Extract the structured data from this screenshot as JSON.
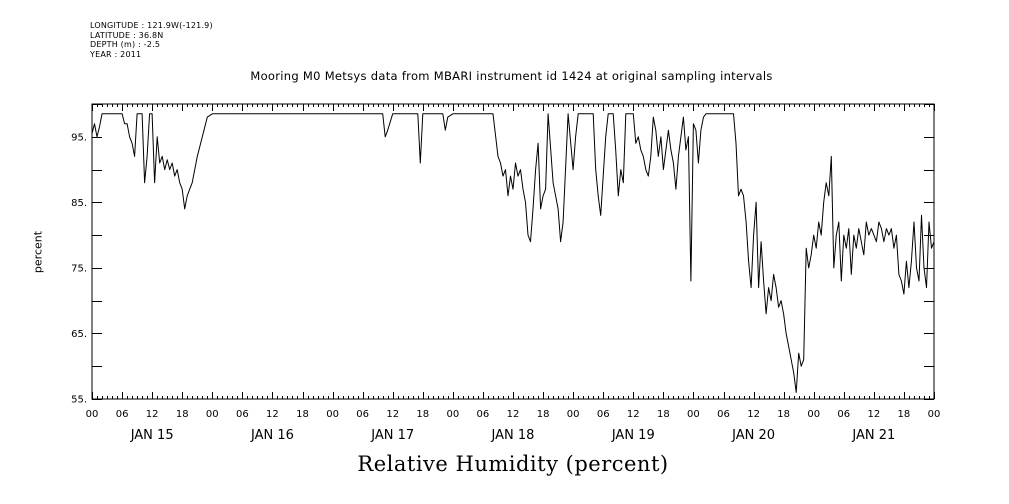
{
  "header": {
    "longitude": "LONGITUDE : 121.9W(-121.9)",
    "latitude": "LATITUDE : 36.8N",
    "depth": "DEPTH (m) : -2.5",
    "year": "YEAR : 2011"
  },
  "chart_data": {
    "type": "line",
    "title": "Mooring M0 Metsys data from MBARI instrument id 1424 at original sampling intervals",
    "xlabel": "Relative Humidity (percent)",
    "ylabel": "percent",
    "ylim": [
      55,
      100
    ],
    "xlim": [
      "2011-01-15 00:00",
      "2011-01-22 00:00"
    ],
    "y_ticks": [
      "95.",
      "85.",
      "75.",
      "65.",
      "55."
    ],
    "y_tick_values": [
      95,
      85,
      75,
      65,
      55
    ],
    "hour_ticks": [
      "00",
      "06",
      "12",
      "18",
      "00",
      "06",
      "12",
      "18",
      "00",
      "06",
      "12",
      "18",
      "00",
      "06",
      "12",
      "18",
      "00",
      "06",
      "12",
      "18",
      "00",
      "06",
      "12",
      "18",
      "00",
      "06",
      "12",
      "18",
      "00"
    ],
    "day_labels": [
      "JAN 15",
      "JAN 16",
      "JAN 17",
      "JAN 18",
      "JAN 19",
      "JAN 20",
      "JAN 21"
    ],
    "grid": false,
    "series": [
      {
        "x_unit": "hours since 2011-01-15 00:00",
        "points": [
          [
            0,
            95.5
          ],
          [
            0.5,
            97
          ],
          [
            1,
            95
          ],
          [
            1.5,
            96.5
          ],
          [
            2,
            98.5
          ],
          [
            6,
            98.5
          ],
          [
            6.5,
            97
          ],
          [
            7,
            97
          ],
          [
            7.5,
            95
          ],
          [
            8,
            94
          ],
          [
            8.5,
            92
          ],
          [
            9,
            98.5
          ],
          [
            10,
            98.5
          ],
          [
            10.5,
            88
          ],
          [
            11,
            92
          ],
          [
            11.5,
            98.5
          ],
          [
            12,
            98.5
          ],
          [
            12.5,
            88
          ],
          [
            13,
            95
          ],
          [
            13.5,
            91
          ],
          [
            14,
            92
          ],
          [
            14.5,
            90
          ],
          [
            15,
            91.5
          ],
          [
            15.5,
            90
          ],
          [
            16,
            91
          ],
          [
            16.5,
            89
          ],
          [
            17,
            90
          ],
          [
            17.5,
            88
          ],
          [
            18,
            87
          ],
          [
            18.5,
            84
          ],
          [
            19,
            86
          ],
          [
            19.5,
            87
          ],
          [
            20,
            88
          ],
          [
            21,
            92
          ],
          [
            22,
            95
          ],
          [
            23,
            98
          ],
          [
            24,
            98.5
          ],
          [
            34,
            98.5
          ],
          [
            40,
            98.5
          ],
          [
            48,
            98.5
          ],
          [
            58,
            98.5
          ],
          [
            58.5,
            95
          ],
          [
            59,
            96
          ],
          [
            60,
            98.5
          ],
          [
            65,
            98.5
          ],
          [
            65.5,
            91
          ],
          [
            66,
            98.5
          ],
          [
            70,
            98.5
          ],
          [
            70.5,
            96
          ],
          [
            71,
            98
          ],
          [
            72,
            98.5
          ],
          [
            80,
            98.5
          ],
          [
            81,
            92
          ],
          [
            81.5,
            91
          ],
          [
            82,
            89
          ],
          [
            82.5,
            90
          ],
          [
            83,
            86
          ],
          [
            83.5,
            89
          ],
          [
            84,
            87
          ],
          [
            84.5,
            91
          ],
          [
            85,
            89
          ],
          [
            85.5,
            90
          ],
          [
            86,
            87
          ],
          [
            86.5,
            85
          ],
          [
            87,
            80
          ],
          [
            87.5,
            79
          ],
          [
            88,
            84
          ],
          [
            88.5,
            90
          ],
          [
            89,
            94
          ],
          [
            89.5,
            84
          ],
          [
            90,
            86
          ],
          [
            90.5,
            87
          ],
          [
            91,
            98.5
          ],
          [
            92,
            88
          ],
          [
            92.5,
            86
          ],
          [
            93,
            84
          ],
          [
            93.5,
            79
          ],
          [
            94,
            82
          ],
          [
            95,
            98.5
          ],
          [
            96,
            90
          ],
          [
            96.5,
            95
          ],
          [
            97,
            98.5
          ],
          [
            98,
            98.5
          ],
          [
            100,
            98.5
          ],
          [
            100.5,
            90
          ],
          [
            101,
            86
          ],
          [
            101.5,
            83
          ],
          [
            102,
            89
          ],
          [
            102.5,
            95
          ],
          [
            103,
            98.5
          ],
          [
            104,
            98.5
          ],
          [
            104.5,
            93
          ],
          [
            105,
            86
          ],
          [
            105.5,
            90
          ],
          [
            106,
            88
          ],
          [
            106.5,
            98.5
          ],
          [
            108,
            98.5
          ],
          [
            108.5,
            94
          ],
          [
            109,
            95
          ],
          [
            109.5,
            93
          ],
          [
            110,
            92
          ],
          [
            110.5,
            90
          ],
          [
            111,
            89
          ],
          [
            111.5,
            92
          ],
          [
            112,
            98
          ],
          [
            112.5,
            96
          ],
          [
            113,
            92
          ],
          [
            113.5,
            95
          ],
          [
            114,
            90
          ],
          [
            114.5,
            93
          ],
          [
            115,
            96
          ],
          [
            115.5,
            93
          ],
          [
            116,
            91
          ],
          [
            116.5,
            87
          ],
          [
            117,
            92
          ],
          [
            117.5,
            95
          ],
          [
            118,
            98
          ],
          [
            118.5,
            93
          ],
          [
            119,
            95
          ],
          [
            119.5,
            73
          ],
          [
            120,
            97
          ],
          [
            120.5,
            96
          ],
          [
            121,
            91
          ],
          [
            121.5,
            96
          ],
          [
            122,
            98
          ],
          [
            122.5,
            98.5
          ],
          [
            128,
            98.5
          ],
          [
            128.5,
            94
          ],
          [
            129,
            86
          ],
          [
            129.5,
            87
          ],
          [
            130,
            86
          ],
          [
            130.5,
            82
          ],
          [
            131,
            76
          ],
          [
            131.5,
            72
          ],
          [
            132,
            80
          ],
          [
            132.5,
            85
          ],
          [
            133,
            72
          ],
          [
            133.5,
            79
          ],
          [
            134,
            73
          ],
          [
            134.5,
            68
          ],
          [
            135,
            72
          ],
          [
            135.5,
            70
          ],
          [
            136,
            74
          ],
          [
            136.5,
            72
          ],
          [
            137,
            69
          ],
          [
            137.5,
            70
          ],
          [
            138,
            68
          ],
          [
            138.5,
            65
          ],
          [
            139,
            63
          ],
          [
            139.5,
            61
          ],
          [
            140,
            59
          ],
          [
            140.5,
            56
          ],
          [
            141,
            62
          ],
          [
            141.5,
            60
          ],
          [
            142,
            61
          ],
          [
            142.5,
            78
          ],
          [
            143,
            75
          ],
          [
            143.5,
            77
          ],
          [
            144,
            80
          ],
          [
            144.5,
            78
          ],
          [
            145,
            82
          ],
          [
            145.5,
            80
          ],
          [
            146,
            85
          ],
          [
            146.5,
            88
          ],
          [
            147,
            86
          ],
          [
            147.5,
            92
          ],
          [
            148,
            75
          ],
          [
            148.5,
            80
          ],
          [
            149,
            82
          ],
          [
            149.5,
            73
          ],
          [
            150,
            80
          ],
          [
            150.5,
            78
          ],
          [
            151,
            81
          ],
          [
            151.5,
            74
          ],
          [
            152,
            80
          ],
          [
            152.5,
            78
          ],
          [
            153,
            81
          ],
          [
            153.5,
            79
          ],
          [
            154,
            77
          ],
          [
            154.5,
            82
          ],
          [
            155,
            80
          ],
          [
            155.5,
            81
          ],
          [
            156,
            80
          ],
          [
            156.5,
            79
          ],
          [
            157,
            82
          ],
          [
            157.5,
            81
          ],
          [
            158,
            79
          ],
          [
            158.5,
            81
          ],
          [
            159,
            80
          ],
          [
            159.5,
            81
          ],
          [
            160,
            78
          ],
          [
            160.5,
            80
          ],
          [
            161,
            74
          ],
          [
            161.5,
            73
          ],
          [
            162,
            71
          ],
          [
            162.5,
            76
          ],
          [
            163,
            72
          ],
          [
            163.5,
            76
          ],
          [
            164,
            82
          ],
          [
            164.5,
            75
          ],
          [
            165,
            73
          ],
          [
            165.5,
            83
          ],
          [
            166,
            75
          ],
          [
            166.5,
            72
          ],
          [
            167,
            82
          ],
          [
            167.5,
            78
          ],
          [
            168,
            79
          ]
        ]
      }
    ]
  }
}
